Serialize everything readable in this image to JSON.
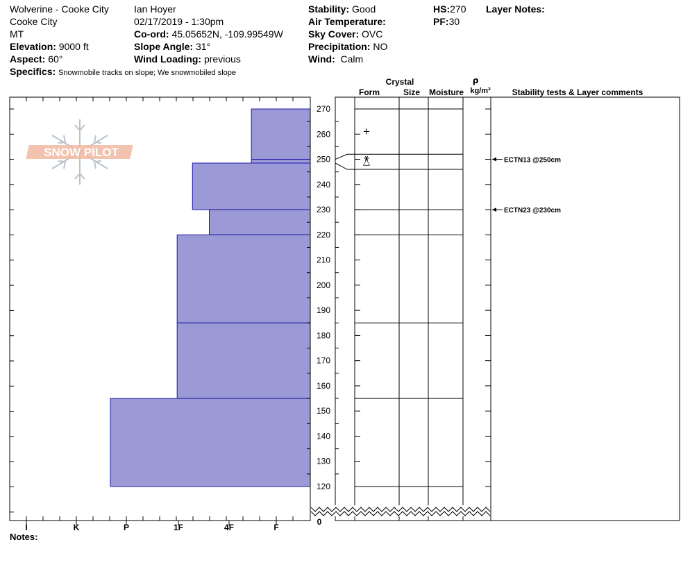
{
  "header": {
    "location": "Wolverine - Cooke City",
    "area": "Cooke City",
    "state": "MT",
    "elevation_label": "Elevation:",
    "elevation_value": "9000 ft",
    "aspect_label": "Aspect:",
    "aspect_value": "60°",
    "specifics_label": "Specifics:",
    "specifics_value": "Snowmobile tracks on slope; We snowmobiled slope",
    "observer": "Ian Hoyer",
    "datetime": "02/17/2019 - 1:30pm",
    "coord_label": "Co-ord:",
    "coord_value": "45.05652N, -109.99549W",
    "slope_label": "Slope Angle:",
    "slope_value": "31°",
    "wind_loading_label": "Wind Loading:",
    "wind_loading_value": "previous",
    "stability_label": "Stability:",
    "stability_value": "Good",
    "air_temp_label": "Air Temperature:",
    "air_temp_value": "",
    "sky_label": "Sky Cover:",
    "sky_value": "OVC",
    "precip_label": "Precipitation:",
    "precip_value": "NO",
    "wind_label": "Wind:",
    "wind_value": "Calm",
    "hs_label": "HS:",
    "hs_value": "270",
    "pf_label": "PF:",
    "pf_value": "30",
    "layer_notes_label": "Layer Notes:"
  },
  "columns": {
    "crystal": "Crystal",
    "form": "Form",
    "size": "Size",
    "moisture": "Moisture",
    "rho": "ρ",
    "density_unit": "kg/m³",
    "stability_comments": "Stability tests & Layer comments"
  },
  "notes_label": "Notes:",
  "logo_text": "SNOW PILOT",
  "colors": {
    "layer_fill": "#9b99d6",
    "layer_stroke": "#1a1aa6",
    "logo": "#f0b9a0"
  },
  "chart_data": {
    "type": "bar",
    "orientation": "horizontal",
    "y_axis": {
      "range": [
        120,
        270
      ],
      "ticks": [
        270,
        260,
        250,
        240,
        230,
        220,
        210,
        200,
        190,
        180,
        170,
        160,
        150,
        140,
        130,
        120
      ],
      "bottom_label": "0",
      "axis_break": true
    },
    "hardness_scale": [
      "I",
      "K",
      "P",
      "1F",
      "4F",
      "F"
    ],
    "layers": [
      {
        "top": 270,
        "bottom": 250,
        "hardness": 0.196
      },
      {
        "top": 250,
        "bottom": 248.5,
        "hardness": 0.196
      },
      {
        "top": 248.5,
        "bottom": 230,
        "hardness": 0.392
      },
      {
        "top": 230,
        "bottom": 220,
        "hardness": 0.336
      },
      {
        "top": 220,
        "bottom": 185,
        "hardness": 0.443
      },
      {
        "top": 185,
        "bottom": 155,
        "hardness": 0.443
      },
      {
        "top": 155,
        "bottom": 120,
        "hardness": 0.665
      }
    ],
    "grid_layer_lines": [
      270,
      252,
      246,
      230,
      220,
      185,
      155,
      120
    ],
    "crystal_symbols": [
      {
        "depth": 261,
        "symbol": "+"
      },
      {
        "depth": 250.5,
        "symbol": "⚹"
      },
      {
        "depth": 249,
        "symbol": "△"
      }
    ],
    "stability_tests": [
      {
        "depth": 250,
        "label": "ECTN13 @250cm"
      },
      {
        "depth": 230,
        "label": "ECTN23 @230cm"
      }
    ]
  }
}
